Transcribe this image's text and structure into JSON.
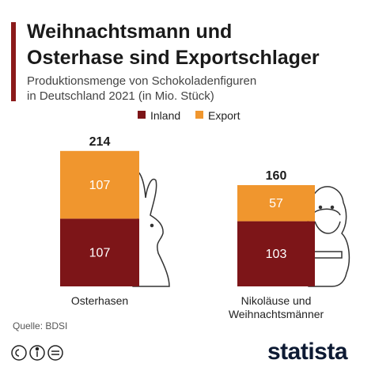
{
  "chart_data": {
    "type": "stacked_bar",
    "title": "Weihnachtsmann und\nOsterhase sind Exportschlager",
    "subtitle": "Produktionsmenge von Schokoladenfiguren\nin Deutschland 2021 (in Mio. Stück)",
    "categories": [
      "Osterhasen",
      "Nikoläuse und Weihnachtsmänner"
    ],
    "series": [
      {
        "name": "Inland",
        "color": "#7d1518",
        "values": [
          107,
          103
        ]
      },
      {
        "name": "Export",
        "color": "#f0962e",
        "values": [
          107,
          57
        ]
      }
    ],
    "totals": [
      214,
      160
    ],
    "source": "Quelle: BDSI",
    "logo": "statista"
  }
}
